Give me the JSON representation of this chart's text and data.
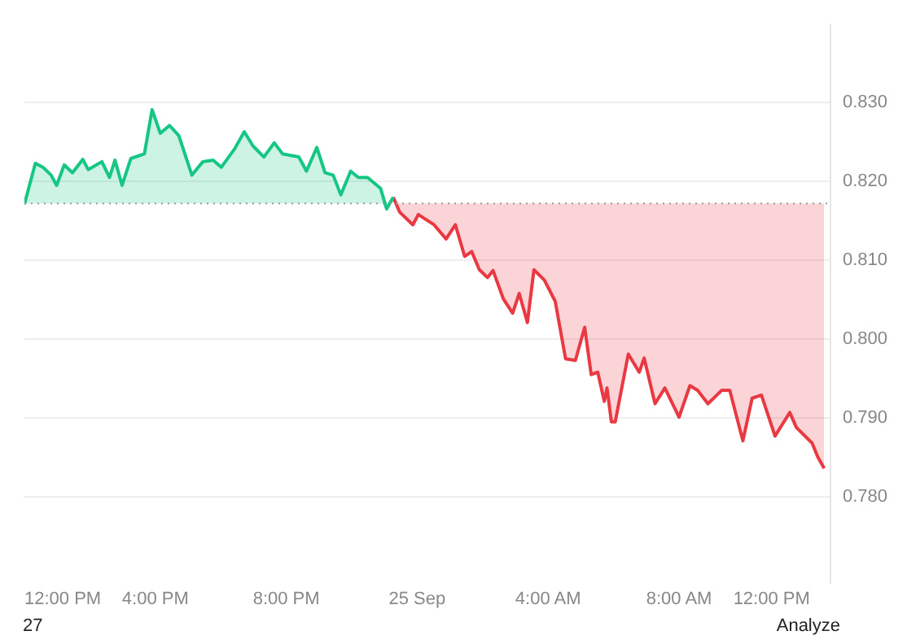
{
  "chart_data": {
    "type": "line",
    "series": [
      {
        "color": "#16c784",
        "x": [
          "--09-24T12:00",
          "--09-24T12:20",
          "--09-24T12:34",
          "--09-24T12:49",
          "--09-24T12:59",
          "--09-24T13:13",
          "--09-24T13:28",
          "--09-24T13:47",
          "--09-24T13:57",
          "--09-24T14:22",
          "--09-24T14:36",
          "--09-24T14:46",
          "--09-24T14:59",
          "--09-24T15:15",
          "--09-24T15:40",
          "--09-24T15:54",
          "--09-24T16:09",
          "--09-24T16:26",
          "--09-24T16:43",
          "--09-24T17:07",
          "--09-24T17:27",
          "--09-24T17:46",
          "--09-24T18:01",
          "--09-24T18:25",
          "--09-24T18:43",
          "--09-24T18:59",
          "--09-24T19:19",
          "--09-24T19:38",
          "--09-24T19:53",
          "--09-24T20:23",
          "--09-24T20:37",
          "--09-24T20:56",
          "--09-24T21:11",
          "--09-24T21:26",
          "--09-24T21:40",
          "--09-24T21:58",
          "--09-24T22:12",
          "--09-24T22:29",
          "--09-24T22:53",
          "--09-24T23:04",
          "--09-24T23:16"
        ],
        "values": [
          0.8171,
          0.8223,
          0.8218,
          0.8208,
          0.8195,
          0.8221,
          0.8211,
          0.8228,
          0.8215,
          0.8225,
          0.8205,
          0.8227,
          0.8195,
          0.8229,
          0.8235,
          0.8291,
          0.8261,
          0.8271,
          0.8258,
          0.8208,
          0.8225,
          0.8227,
          0.8218,
          0.8241,
          0.8263,
          0.8245,
          0.8231,
          0.8249,
          0.8235,
          0.8231,
          0.8213,
          0.8243,
          0.8211,
          0.8208,
          0.8183,
          0.8213,
          0.8205,
          0.8205,
          0.8191,
          0.8165,
          0.818
        ],
        "lower": [
          0.8172,
          0.8172,
          0.8172,
          0.8172,
          0.8172,
          0.8172,
          0.8172,
          0.8172,
          0.8172,
          0.8172,
          0.8172,
          0.8172,
          0.8172,
          0.8172,
          0.8172,
          0.8172,
          0.8172,
          0.8172,
          0.8172,
          0.8172,
          0.8172,
          0.8172,
          0.8172,
          0.8172,
          0.8172,
          0.8172,
          0.8172,
          0.8172,
          0.8172,
          0.8172,
          0.8172,
          0.8172,
          0.8172,
          0.8172,
          0.8172,
          0.8172,
          0.8172,
          0.8172,
          0.8172,
          0.8172,
          0.8172
        ],
        "upper": [
          0.8172,
          0.8223,
          0.8218,
          0.8208,
          0.8195,
          0.8221,
          0.8211,
          0.8228,
          0.8215,
          0.8225,
          0.8205,
          0.8227,
          0.8195,
          0.8229,
          0.8235,
          0.8291,
          0.8261,
          0.8271,
          0.8258,
          0.8208,
          0.8225,
          0.8227,
          0.8218,
          0.8241,
          0.8263,
          0.8245,
          0.8231,
          0.8249,
          0.8235,
          0.8231,
          0.8213,
          0.8243,
          0.8211,
          0.8208,
          0.8183,
          0.8213,
          0.8205,
          0.8205,
          0.8191,
          0.8172,
          0.818
        ]
      },
      {
        "color": "#ea3943",
        "x": [
          "--09-24T23:16",
          "--09-24T23:28",
          "--09-24T23:52",
          "--09-25T00:02",
          "--09-25T00:31",
          "--09-25T00:53",
          "--09-25T01:10",
          "--09-25T01:27",
          "--09-25T01:40",
          "--09-25T01:54",
          "--09-25T02:09",
          "--09-25T02:19",
          "--09-25T02:38",
          "--09-25T02:55",
          "--09-25T03:07",
          "--09-25T03:22",
          "--09-25T03:34",
          "--09-25T03:53",
          "--09-25T04:13",
          "--09-25T04:32",
          "--09-25T04:50",
          "--09-25T05:07",
          "--09-25T05:19",
          "--09-25T05:31",
          "--09-25T05:43",
          "--09-25T05:48",
          "--09-25T05:56",
          "--09-25T06:03",
          "--09-25T06:27",
          "--09-25T06:47",
          "--09-25T06:56",
          "--09-25T07:16",
          "--09-25T07:34",
          "--09-25T08:00",
          "--09-25T08:20",
          "--09-25T08:34",
          "--09-25T08:53",
          "--09-25T09:18",
          "--09-25T09:33",
          "--09-25T09:57",
          "--09-25T10:14",
          "--09-25T10:31",
          "--09-25T10:56",
          "--09-25T11:23",
          "--09-25T11:35",
          "--09-25T12:04",
          "--09-25T12:14",
          "--09-25T12:26"
        ],
        "values": [
          0.818,
          0.8161,
          0.8145,
          0.8158,
          0.8145,
          0.8127,
          0.8145,
          0.8105,
          0.8111,
          0.8088,
          0.8078,
          0.8087,
          0.8051,
          0.8033,
          0.8058,
          0.8021,
          0.8088,
          0.8075,
          0.8048,
          0.7975,
          0.7973,
          0.8015,
          0.7955,
          0.7958,
          0.7921,
          0.7938,
          0.7895,
          0.7895,
          0.7981,
          0.7958,
          0.7976,
          0.7918,
          0.7938,
          0.7901,
          0.7941,
          0.7935,
          0.7918,
          0.7935,
          0.7935,
          0.7871,
          0.7925,
          0.7929,
          0.7877,
          0.7907,
          0.7888,
          0.7868,
          0.7851,
          0.7836
        ],
        "lower": [
          0.818,
          0.8161,
          0.8145,
          0.8158,
          0.8145,
          0.8127,
          0.8145,
          0.8105,
          0.8111,
          0.8088,
          0.8078,
          0.8087,
          0.8051,
          0.8033,
          0.8058,
          0.8021,
          0.8088,
          0.8075,
          0.8048,
          0.7975,
          0.7973,
          0.8015,
          0.7955,
          0.7958,
          0.7921,
          0.7938,
          0.7895,
          0.7895,
          0.7981,
          0.7958,
          0.7976,
          0.7918,
          0.7938,
          0.7901,
          0.7941,
          0.7935,
          0.7918,
          0.7935,
          0.7935,
          0.7871,
          0.7925,
          0.7929,
          0.7877,
          0.7907,
          0.7888,
          0.7868,
          0.7851,
          0.7836
        ],
        "upper": [
          0.818,
          0.8172,
          0.8172,
          0.8172,
          0.8172,
          0.8172,
          0.8172,
          0.8172,
          0.8172,
          0.8172,
          0.8172,
          0.8172,
          0.8172,
          0.8172,
          0.8172,
          0.8172,
          0.8172,
          0.8172,
          0.8172,
          0.8172,
          0.8172,
          0.8172,
          0.8172,
          0.8172,
          0.8172,
          0.8172,
          0.8172,
          0.8172,
          0.8172,
          0.8172,
          0.8172,
          0.8172,
          0.8172,
          0.8172,
          0.8172,
          0.8172,
          0.8172,
          0.8172,
          0.8172,
          0.8172,
          0.8172,
          0.8172,
          0.8172,
          0.8172,
          0.8172,
          0.8172,
          0.8172,
          0.8172
        ]
      }
    ],
    "xlim": [
      "--09-24T12:00",
      "--09-25T12:36"
    ],
    "xticks": [
      {
        "value": "--09-24T12:00",
        "label": "12:00 PM"
      },
      {
        "value": "--09-24T16:00",
        "label": "4:00 PM"
      },
      {
        "value": "--09-24T20:00",
        "label": "8:00 PM"
      },
      {
        "value": "--09-25T00:00",
        "label": "25 Sep"
      },
      {
        "value": "--09-25T04:00",
        "label": "4:00 AM"
      },
      {
        "value": "--09-25T08:00",
        "label": "8:00 AM"
      },
      {
        "value": "--09-25T12:00",
        "label": "12:00 PM"
      }
    ],
    "ylim": [
      0.769,
      0.84
    ],
    "yticks": [
      {
        "value": 0.78,
        "label": "0.780"
      },
      {
        "value": 0.79,
        "label": "0.790"
      },
      {
        "value": 0.8,
        "label": "0.800"
      },
      {
        "value": 0.81,
        "label": "0.810"
      },
      {
        "value": 0.82,
        "label": "0.820"
      },
      {
        "value": 0.83,
        "label": "0.830"
      }
    ],
    "ref_lines": [
      {
        "axis": "y",
        "value": 0.8172,
        "line_style": "dotted",
        "color": "#999999"
      }
    ],
    "grid": "y",
    "legend": false,
    "annotations": [
      "27",
      "Analyze"
    ]
  }
}
